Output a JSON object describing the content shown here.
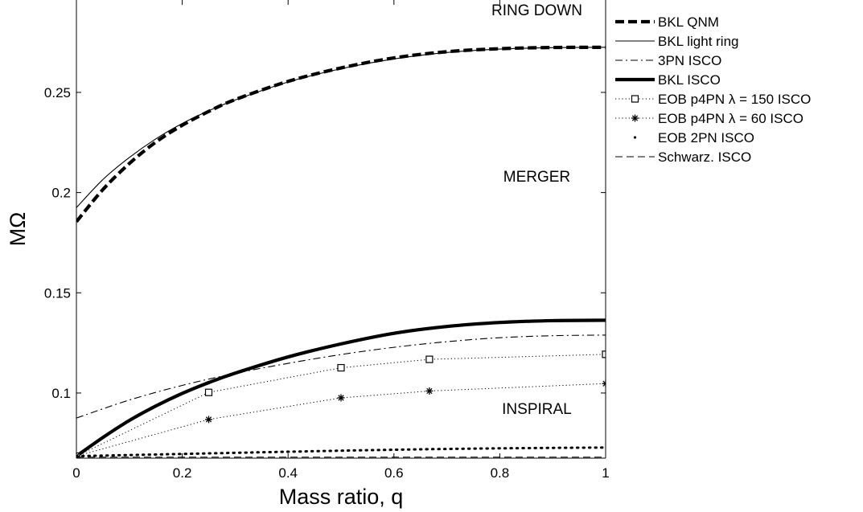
{
  "chart_data": {
    "type": "line",
    "xlabel": "Mass ratio, q",
    "ylabel": "MΩ",
    "xlim": [
      0,
      1
    ],
    "ylim": [
      0.0675,
      0.2965
    ],
    "xticks": [
      0,
      0.2,
      0.4,
      0.6,
      0.8,
      1
    ],
    "xtick_labels": [
      "0",
      "0.2",
      "0.4",
      "0.6",
      "0.8",
      "1"
    ],
    "yticks": [
      0.1,
      0.15,
      0.2,
      0.25
    ],
    "ytick_labels": [
      "0.1",
      "0.15",
      "0.2",
      "0.25"
    ],
    "grid": false,
    "legend_position": "outside-right",
    "annotations": [
      {
        "text": "RING DOWN",
        "x": 0.87,
        "y": 0.2885
      },
      {
        "text": "MERGER",
        "x": 0.87,
        "y": 0.2055
      },
      {
        "text": "INSPIRAL",
        "x": 0.87,
        "y": 0.0895
      }
    ],
    "series": [
      {
        "name": "BKL QNM",
        "style": "thick-dashed",
        "x": [
          0,
          0.05,
          0.1,
          0.15,
          0.2,
          0.25,
          0.3,
          0.4,
          0.5,
          0.6,
          0.7,
          0.8,
          0.9,
          1.0
        ],
        "y": [
          0.1855,
          0.2015,
          0.2145,
          0.2252,
          0.2336,
          0.2405,
          0.2464,
          0.2555,
          0.2622,
          0.2672,
          0.2703,
          0.2718,
          0.2724,
          0.2725
        ]
      },
      {
        "name": "BKL light ring",
        "style": "thin-solid",
        "x": [
          0,
          0.05,
          0.1,
          0.15,
          0.2,
          0.25,
          0.3,
          0.4,
          0.5,
          0.6,
          0.7,
          0.8,
          0.9,
          1.0
        ],
        "y": [
          0.1925,
          0.2065,
          0.2175,
          0.2268,
          0.2345,
          0.2408,
          0.2462,
          0.2552,
          0.2618,
          0.2667,
          0.2699,
          0.2716,
          0.2723,
          0.2725
        ]
      },
      {
        "name": "3PN ISCO",
        "style": "dash-dot",
        "x": [
          0,
          0.1,
          0.2,
          0.3,
          0.4,
          0.5,
          0.6,
          0.7,
          0.8,
          0.9,
          1.0
        ],
        "y": [
          0.0875,
          0.0965,
          0.1038,
          0.1098,
          0.1148,
          0.1192,
          0.1228,
          0.1256,
          0.1276,
          0.1286,
          0.1289
        ]
      },
      {
        "name": "BKL ISCO",
        "style": "thick-solid",
        "x": [
          0,
          0.05,
          0.1,
          0.15,
          0.2,
          0.25,
          0.3,
          0.4,
          0.5,
          0.6,
          0.7,
          0.8,
          0.9,
          1.0
        ],
        "y": [
          0.0685,
          0.0778,
          0.0863,
          0.0935,
          0.0998,
          0.1052,
          0.1099,
          0.118,
          0.1245,
          0.1298,
          0.1332,
          0.1352,
          0.1361,
          0.1363
        ]
      },
      {
        "name": "EOB p4PN λ = 150 ISCO",
        "style": "dotted-square-markers",
        "x": [
          0,
          0.25,
          0.5,
          0.667,
          1.0
        ],
        "y": [
          0.0685,
          0.1003,
          0.1126,
          0.1168,
          0.1193
        ]
      },
      {
        "name": "EOB p4PN λ = 60 ISCO",
        "style": "dotted-star-markers",
        "x": [
          0,
          0.25,
          0.5,
          0.667,
          1.0
        ],
        "y": [
          0.0685,
          0.0868,
          0.0976,
          0.101,
          0.1047
        ]
      },
      {
        "name": "EOB 2PN ISCO",
        "style": "thick-dotted",
        "x": [
          0,
          0.2,
          0.4,
          0.6,
          0.8,
          1.0
        ],
        "y": [
          0.0685,
          0.0696,
          0.0707,
          0.0717,
          0.0724,
          0.0728
        ]
      },
      {
        "name": "Schwarz. ISCO",
        "style": "dashed",
        "x": [
          0,
          1.0
        ],
        "y": [
          0.068,
          0.068
        ]
      }
    ]
  }
}
